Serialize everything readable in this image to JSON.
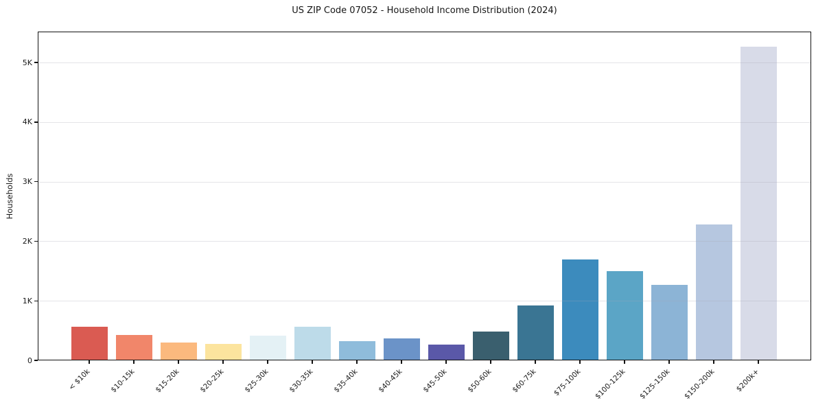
{
  "chart_data": {
    "type": "bar",
    "title": "US ZIP Code 07052 - Household Income Distribution (2024)",
    "xlabel": "",
    "ylabel": "Households",
    "categories": [
      "< $10k",
      "$10-15k",
      "$15-20k",
      "$20-25k",
      "$25-30k",
      "$30-35k",
      "$35-40k",
      "$40-45k",
      "$45-50k",
      "$50-60k",
      "$60-75k",
      "$75-100k",
      "$100-125k",
      "$125-150k",
      "$150-200k",
      "$200k+"
    ],
    "values": [
      570,
      425,
      300,
      275,
      420,
      570,
      320,
      375,
      260,
      490,
      925,
      1695,
      1500,
      1265,
      2285,
      5270
    ],
    "bar_colors": [
      "#da5b52",
      "#f1866a",
      "#fbb97e",
      "#fce49e",
      "#e4f1f5",
      "#bddbe9",
      "#8fbcdb",
      "#6b93c8",
      "#5a58a8",
      "#3a5f6e",
      "#3a7593",
      "#3c8bbd",
      "#5ba5c6",
      "#8cb4d6",
      "#b6c7e0",
      "#d8dbe8"
    ],
    "yticks": [
      {
        "value": 0,
        "label": "0"
      },
      {
        "value": 1000,
        "label": "1K"
      },
      {
        "value": 2000,
        "label": "2K"
      },
      {
        "value": 3000,
        "label": "3K"
      },
      {
        "value": 4000,
        "label": "4K"
      },
      {
        "value": 5000,
        "label": "5K"
      }
    ],
    "ylim": [
      0,
      5520
    ],
    "grid": "horizontal",
    "legend": "none"
  }
}
